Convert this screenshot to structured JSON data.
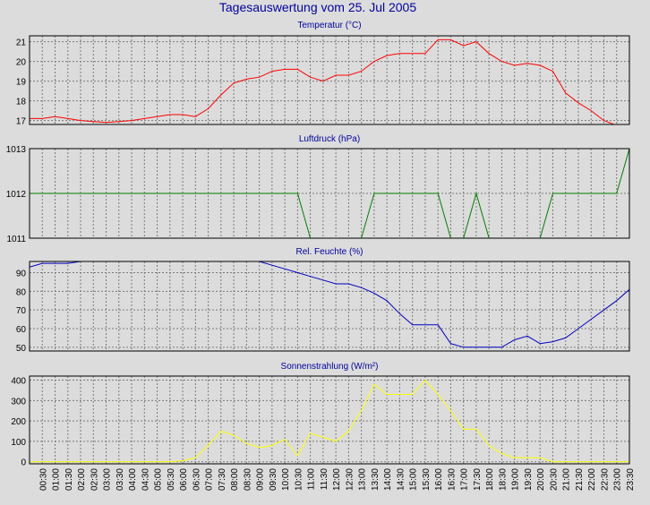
{
  "title": "Tagesauswertung vom 25. Jul 2005",
  "x_labels": [
    "00:30",
    "01:00",
    "01:30",
    "02:00",
    "02:30",
    "03:00",
    "03:30",
    "04:00",
    "04:30",
    "05:00",
    "05:30",
    "06:00",
    "06:30",
    "07:00",
    "07:30",
    "08:00",
    "08:30",
    "09:00",
    "09:30",
    "10:00",
    "10:30",
    "11:00",
    "11:30",
    "12:00",
    "12:30",
    "13:00",
    "13:30",
    "14:00",
    "14:30",
    "15:00",
    "15:30",
    "16:00",
    "16:30",
    "17:00",
    "17:30",
    "18:00",
    "18:30",
    "19:00",
    "19:30",
    "20:00",
    "20:30",
    "21:00",
    "21:30",
    "22:00",
    "22:30",
    "23:00",
    "23:30"
  ],
  "colors": {
    "background": "#dcdcdc",
    "plot_background": "#dcdcdc",
    "grid": "#7a7a7a",
    "title": "#0000a0",
    "temperature": "#ff0000",
    "pressure": "#008000",
    "humidity": "#0000c0",
    "radiation": "#ffff00"
  },
  "chart_data": [
    {
      "type": "line",
      "title": "Temperatur (°C)",
      "ylim": [
        16.8,
        21.3
      ],
      "y_ticks": [
        17,
        18,
        19,
        20,
        21
      ],
      "x": [
        "00:00",
        "00:30",
        "01:00",
        "01:30",
        "02:00",
        "02:30",
        "03:00",
        "03:30",
        "04:00",
        "04:30",
        "05:00",
        "05:30",
        "06:00",
        "06:30",
        "07:00",
        "07:30",
        "08:00",
        "08:30",
        "09:00",
        "09:30",
        "10:00",
        "10:30",
        "11:00",
        "11:30",
        "12:00",
        "12:30",
        "13:00",
        "13:30",
        "14:00",
        "14:30",
        "15:00",
        "15:30",
        "16:00",
        "16:30",
        "17:00",
        "17:30",
        "18:00",
        "18:30",
        "19:00",
        "19:30",
        "20:00",
        "20:30",
        "21:00",
        "21:30",
        "22:00",
        "22:30",
        "23:00",
        "23:30"
      ],
      "series": [
        {
          "values": [
            17.1,
            17.1,
            17.2,
            17.1,
            17.0,
            16.95,
            16.9,
            16.95,
            17.0,
            17.1,
            17.2,
            17.3,
            17.3,
            17.2,
            17.6,
            18.3,
            18.9,
            19.1,
            19.2,
            19.5,
            19.6,
            19.6,
            19.2,
            19.0,
            19.3,
            19.3,
            19.5,
            20.0,
            20.3,
            20.4,
            20.4,
            20.4,
            21.1,
            21.1,
            20.8,
            21.0,
            20.4,
            20.0,
            19.8,
            19.9,
            19.8,
            19.5,
            18.4,
            17.9,
            17.5,
            17.0,
            16.75,
            16.7
          ]
        }
      ]
    },
    {
      "type": "line",
      "title": "Luftdruck (hPa)",
      "ylim": [
        1011,
        1013
      ],
      "y_ticks": [
        1011,
        1012,
        1013
      ],
      "x": [
        "00:00",
        "00:30",
        "01:00",
        "01:30",
        "02:00",
        "02:30",
        "03:00",
        "03:30",
        "04:00",
        "04:30",
        "05:00",
        "05:30",
        "06:00",
        "06:30",
        "07:00",
        "07:30",
        "08:00",
        "08:30",
        "09:00",
        "09:30",
        "10:00",
        "10:30",
        "11:00",
        "11:30",
        "12:00",
        "12:30",
        "13:00",
        "13:30",
        "14:00",
        "14:30",
        "15:00",
        "15:30",
        "16:00",
        "16:30",
        "17:00",
        "17:30",
        "18:00",
        "18:30",
        "19:00",
        "19:30",
        "20:00",
        "20:30",
        "21:00",
        "21:30",
        "22:00",
        "22:30",
        "23:00",
        "23:30"
      ],
      "series": [
        {
          "values": [
            1012,
            1012,
            1012,
            1012,
            1012,
            1012,
            1012,
            1012,
            1012,
            1012,
            1012,
            1012,
            1012,
            1012,
            1012,
            1012,
            1012,
            1012,
            1012,
            1012,
            1012,
            1012,
            1011,
            1011,
            1011,
            1011,
            1011,
            1012,
            1012,
            1012,
            1012,
            1012,
            1012,
            1011,
            1011,
            1012,
            1011,
            1011,
            1011,
            1011,
            1011,
            1012,
            1012,
            1012,
            1012,
            1012,
            1012,
            1013
          ]
        }
      ]
    },
    {
      "type": "line",
      "title": "Rel. Feuchte (%)",
      "ylim": [
        48,
        96
      ],
      "y_ticks": [
        50,
        60,
        70,
        80,
        90
      ],
      "x": [
        "00:00",
        "00:30",
        "01:00",
        "01:30",
        "02:00",
        "02:30",
        "03:00",
        "03:30",
        "04:00",
        "04:30",
        "05:00",
        "05:30",
        "06:00",
        "06:30",
        "07:00",
        "07:30",
        "08:00",
        "08:30",
        "09:00",
        "09:30",
        "10:00",
        "10:30",
        "11:00",
        "11:30",
        "12:00",
        "12:30",
        "13:00",
        "13:30",
        "14:00",
        "14:30",
        "15:00",
        "15:30",
        "16:00",
        "16:30",
        "17:00",
        "17:30",
        "18:00",
        "18:30",
        "19:00",
        "19:30",
        "20:00",
        "20:30",
        "21:00",
        "21:30",
        "22:00",
        "22:30",
        "23:00",
        "23:30"
      ],
      "series": [
        {
          "values": [
            93,
            95,
            95,
            95,
            96,
            97,
            97,
            97,
            97,
            97,
            97,
            97,
            97,
            97,
            97,
            97,
            97,
            97,
            96,
            94,
            92,
            90,
            88,
            86,
            84,
            84,
            82,
            79,
            75,
            68,
            62,
            62,
            62,
            52,
            50,
            50,
            50,
            50,
            54,
            56,
            52,
            53,
            55,
            60,
            65,
            70,
            75,
            81
          ]
        }
      ]
    },
    {
      "type": "line",
      "title": "Sonnenstrahlung (W/m²)",
      "ylim": [
        -10,
        420
      ],
      "y_ticks": [
        0,
        100,
        200,
        300,
        400
      ],
      "x": [
        "00:00",
        "00:30",
        "01:00",
        "01:30",
        "02:00",
        "02:30",
        "03:00",
        "03:30",
        "04:00",
        "04:30",
        "05:00",
        "05:30",
        "06:00",
        "06:30",
        "07:00",
        "07:30",
        "08:00",
        "08:30",
        "09:00",
        "09:30",
        "10:00",
        "10:30",
        "11:00",
        "11:30",
        "12:00",
        "12:30",
        "13:00",
        "13:30",
        "14:00",
        "14:30",
        "15:00",
        "15:30",
        "16:00",
        "16:30",
        "17:00",
        "17:30",
        "18:00",
        "18:30",
        "19:00",
        "19:30",
        "20:00",
        "20:30",
        "21:00",
        "21:30",
        "22:00",
        "22:30",
        "23:00",
        "23:30"
      ],
      "series": [
        {
          "values": [
            0,
            0,
            0,
            0,
            0,
            0,
            0,
            0,
            0,
            0,
            0,
            0,
            5,
            20,
            80,
            150,
            130,
            90,
            70,
            80,
            110,
            30,
            140,
            120,
            100,
            150,
            250,
            380,
            330,
            330,
            330,
            400,
            330,
            250,
            160,
            160,
            80,
            40,
            20,
            20,
            20,
            0,
            0,
            0,
            0,
            0,
            0,
            0
          ]
        }
      ]
    }
  ]
}
